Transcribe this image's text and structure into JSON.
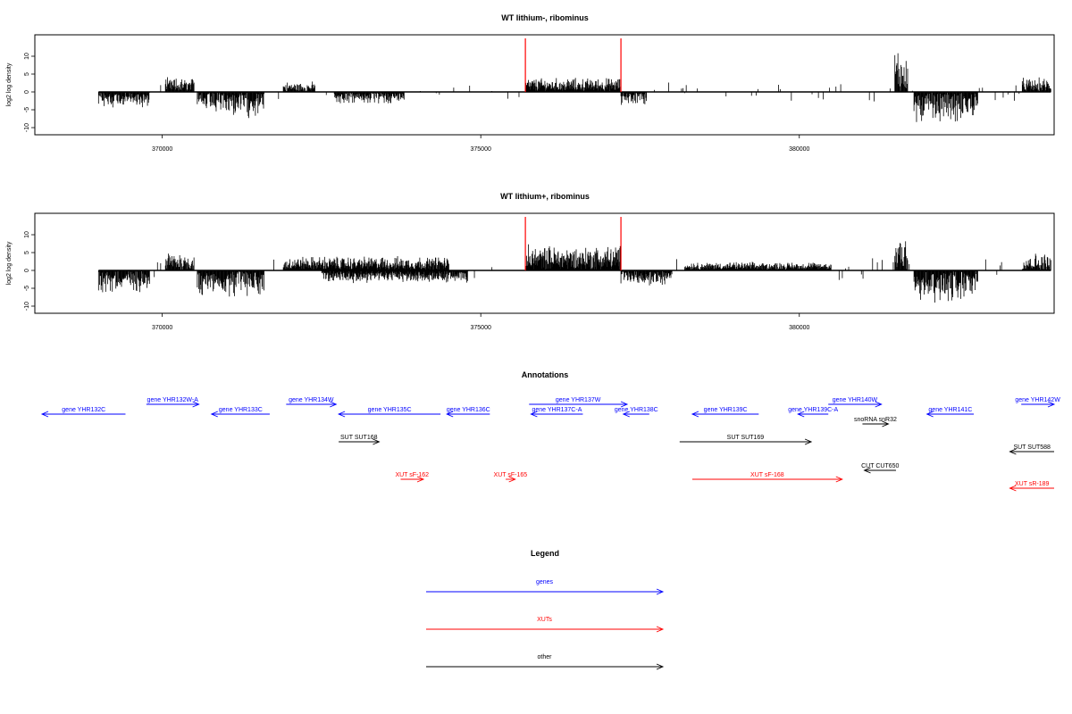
{
  "chart_data": [
    {
      "type": "bar",
      "title": "WT lithium-, ribominus",
      "ylabel": "log2 log density",
      "xlabel": "",
      "xlim": [
        368000,
        384000
      ],
      "ylim": [
        -11,
        15
      ],
      "y_ticks": [
        -10,
        -5,
        0,
        5,
        10
      ],
      "x_ticks": [
        370000,
        375000,
        380000
      ],
      "x_tick_labels": [
        "370000",
        "375000",
        "380000"
      ],
      "highlight_lines_x": [
        375700,
        377200
      ],
      "highlight_color": "#ff0000",
      "segments": [
        {
          "from": 369000,
          "to": 369800,
          "sign": -1,
          "amp": 4.0
        },
        {
          "from": 370050,
          "to": 370500,
          "sign": 1,
          "amp": 3.5
        },
        {
          "from": 370550,
          "to": 371600,
          "sign": -1,
          "amp": 6.5
        },
        {
          "from": 371900,
          "to": 372400,
          "sign": 1,
          "amp": 2.5
        },
        {
          "from": 372700,
          "to": 373800,
          "sign": -1,
          "amp": 3.0
        },
        {
          "from": 375700,
          "to": 377200,
          "sign": 1,
          "amp": 3.5
        },
        {
          "from": 377200,
          "to": 377600,
          "sign": -1,
          "amp": 3.5
        },
        {
          "from": 381500,
          "to": 381700,
          "sign": 1,
          "amp": 12.0
        },
        {
          "from": 381800,
          "to": 382800,
          "sign": -1,
          "amp": 8.0
        },
        {
          "from": 383500,
          "to": 383950,
          "sign": 1,
          "amp": 3.5
        }
      ],
      "background_noise": 1.5
    },
    {
      "type": "bar",
      "title": "WT lithium+, ribominus",
      "ylabel": "log2 log density",
      "xlabel": "",
      "xlim": [
        368000,
        384000
      ],
      "ylim": [
        -11,
        15
      ],
      "y_ticks": [
        -10,
        -5,
        0,
        5,
        10
      ],
      "x_ticks": [
        370000,
        375000,
        380000
      ],
      "x_tick_labels": [
        "370000",
        "375000",
        "380000"
      ],
      "highlight_lines_x": [
        375700,
        377200
      ],
      "highlight_color": "#ff0000",
      "segments": [
        {
          "from": 369000,
          "to": 369800,
          "sign": -1,
          "amp": 5.5
        },
        {
          "from": 370050,
          "to": 370500,
          "sign": 1,
          "amp": 5.0
        },
        {
          "from": 370550,
          "to": 371600,
          "sign": -1,
          "amp": 7.0
        },
        {
          "from": 371900,
          "to": 374500,
          "sign": 1,
          "amp": 3.5
        },
        {
          "from": 372500,
          "to": 374800,
          "sign": -1,
          "amp": 3.0
        },
        {
          "from": 375700,
          "to": 377200,
          "sign": 1,
          "amp": 6.5
        },
        {
          "from": 377200,
          "to": 378000,
          "sign": -1,
          "amp": 4.0
        },
        {
          "from": 378200,
          "to": 380500,
          "sign": 1,
          "amp": 2.0
        },
        {
          "from": 381500,
          "to": 381700,
          "sign": 1,
          "amp": 12.0
        },
        {
          "from": 381800,
          "to": 382800,
          "sign": -1,
          "amp": 8.5
        },
        {
          "from": 383500,
          "to": 383950,
          "sign": 1,
          "amp": 4.5
        }
      ],
      "background_noise": 2.0
    }
  ],
  "annotations": {
    "title": "Annotations",
    "xlim": [
      368000,
      384000
    ],
    "colors": {
      "gene": "#0000ff",
      "xut": "#ff0000",
      "other": "#000000"
    },
    "features": [
      {
        "label": "gene YHR132C",
        "kind": "gene",
        "dir": "left",
        "start": 368000,
        "end": 369320,
        "row": 1
      },
      {
        "label": "gene YHR132W-A",
        "kind": "gene",
        "dir": "right",
        "start": 369650,
        "end": 370480,
        "row": 0
      },
      {
        "label": "gene YHR133C",
        "kind": "gene",
        "dir": "left",
        "start": 370680,
        "end": 371600,
        "row": 1
      },
      {
        "label": "gene YHR134W",
        "kind": "gene",
        "dir": "right",
        "start": 371860,
        "end": 372650,
        "row": 0
      },
      {
        "label": "gene YHR135C",
        "kind": "gene",
        "dir": "left",
        "start": 372690,
        "end": 374300,
        "row": 1
      },
      {
        "label": "gene YHR136C",
        "kind": "gene",
        "dir": "left",
        "start": 374400,
        "end": 375080,
        "row": 1
      },
      {
        "label": "gene YHR137W",
        "kind": "gene",
        "dir": "right",
        "start": 375700,
        "end": 377250,
        "row": 0
      },
      {
        "label": "gene YHR137C-A",
        "kind": "gene",
        "dir": "left",
        "start": 375730,
        "end": 376550,
        "row": 1
      },
      {
        "label": "gene YHR138C",
        "kind": "gene",
        "dir": "left",
        "start": 377190,
        "end": 377600,
        "row": 1
      },
      {
        "label": "gene YHR139C",
        "kind": "gene",
        "dir": "left",
        "start": 378280,
        "end": 379330,
        "row": 1
      },
      {
        "label": "gene YHR139C-A",
        "kind": "gene",
        "dir": "left",
        "start": 379950,
        "end": 380430,
        "row": 1
      },
      {
        "label": "gene YHR140W",
        "kind": "gene",
        "dir": "right",
        "start": 380430,
        "end": 381270,
        "row": 0
      },
      {
        "label": "gene YHR141C",
        "kind": "gene",
        "dir": "left",
        "start": 381990,
        "end": 382730,
        "row": 1
      },
      {
        "label": "gene YHR142W",
        "kind": "gene",
        "dir": "right",
        "start": 383480,
        "end": 384400,
        "row": 0
      },
      {
        "label": "snoRNA snR32",
        "kind": "other",
        "dir": "right",
        "start": 380970,
        "end": 381380,
        "row": 2
      },
      {
        "label": "SUT SUT168",
        "kind": "other",
        "dir": "right",
        "start": 372690,
        "end": 373330,
        "row": 3
      },
      {
        "label": "SUT SUT169",
        "kind": "other",
        "dir": "right",
        "start": 378080,
        "end": 380160,
        "row": 3
      },
      {
        "label": "SUT SUT588",
        "kind": "other",
        "dir": "left",
        "start": 383300,
        "end": 384400,
        "row": 4
      },
      {
        "label": "CUT CUT650",
        "kind": "other",
        "dir": "left",
        "start": 381000,
        "end": 381500,
        "row": 5
      },
      {
        "label": "XUT sF-162",
        "kind": "xut",
        "dir": "right",
        "start": 373670,
        "end": 374030,
        "row": 6
      },
      {
        "label": "XUT sF-165",
        "kind": "xut",
        "dir": "right",
        "start": 375330,
        "end": 375480,
        "row": 6
      },
      {
        "label": "XUT sF-168",
        "kind": "xut",
        "dir": "right",
        "start": 378280,
        "end": 380650,
        "row": 6
      },
      {
        "label": "XUT sR-189",
        "kind": "xut",
        "dir": "left",
        "start": 383300,
        "end": 384400,
        "row": 7
      }
    ]
  },
  "legend": {
    "title": "Legend",
    "items": [
      {
        "label": "genes",
        "color": "#0000ff"
      },
      {
        "label": "XUTs",
        "color": "#ff0000"
      },
      {
        "label": "other",
        "color": "#000000"
      }
    ]
  }
}
